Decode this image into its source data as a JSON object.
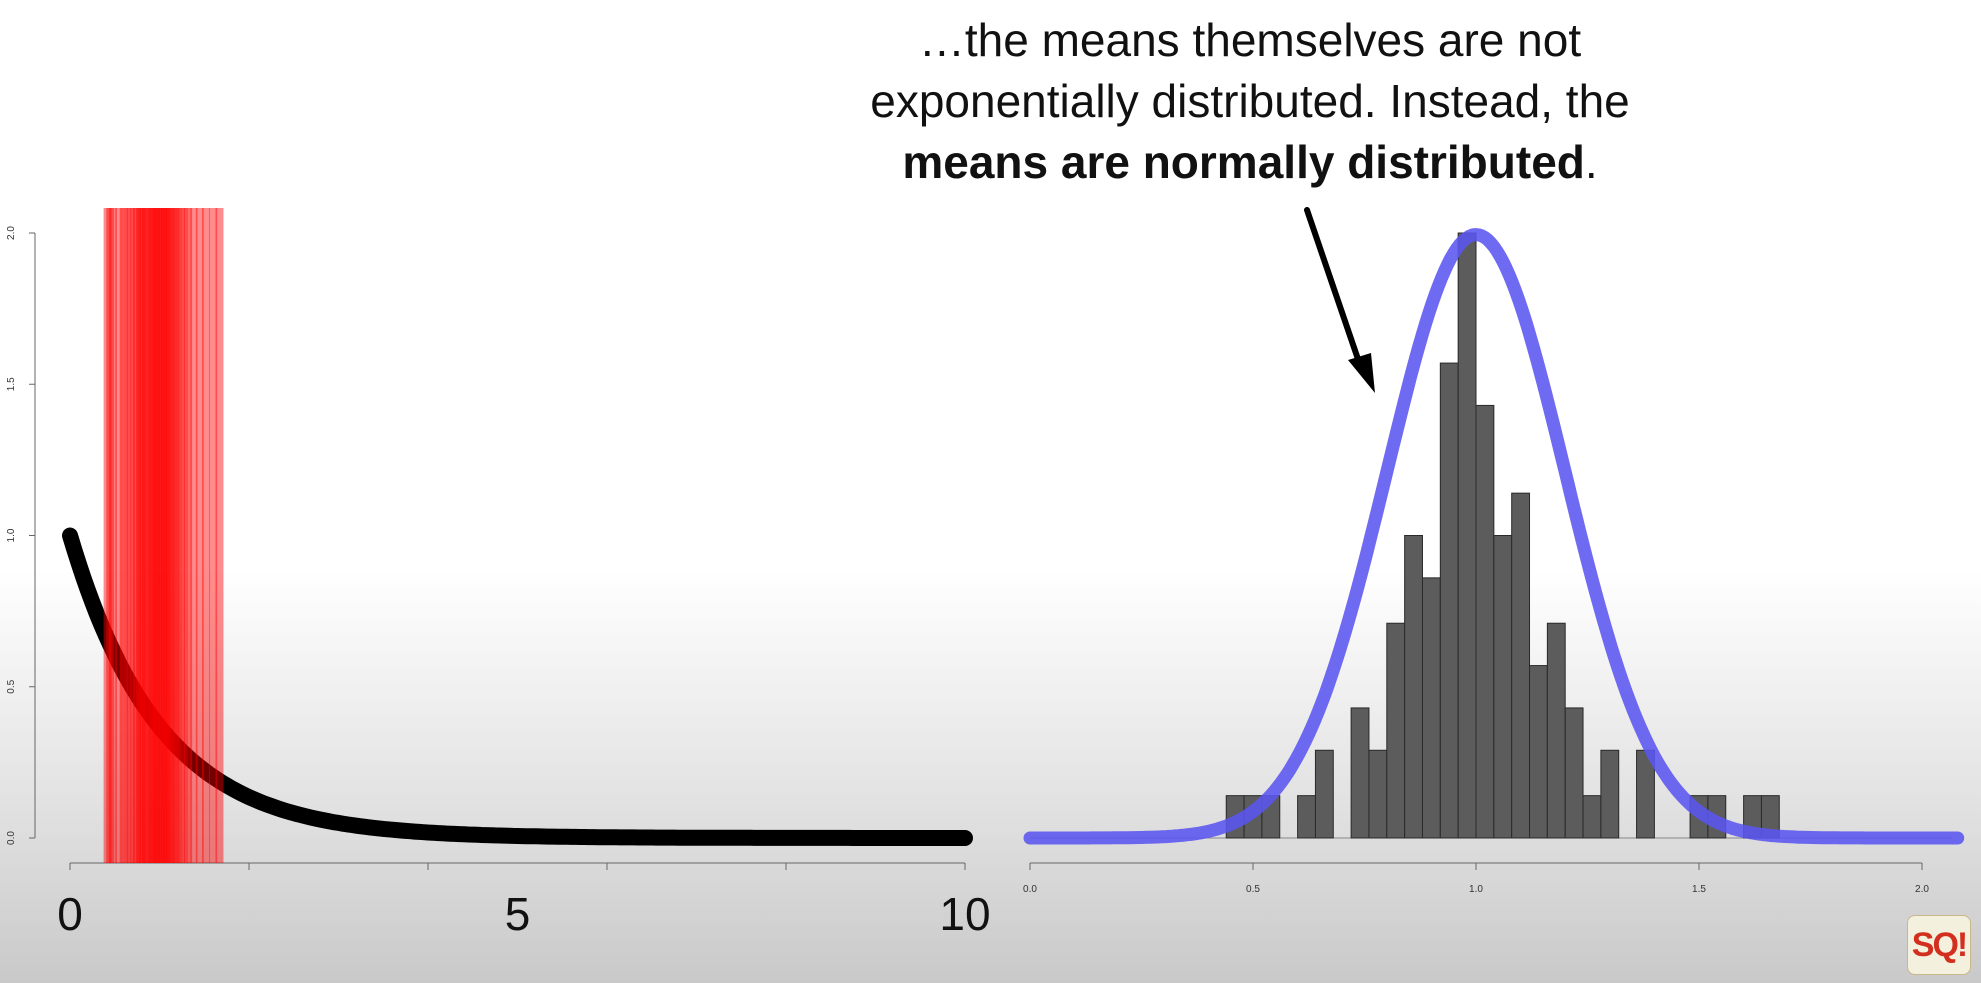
{
  "caption": {
    "line1": "…the means themselves are not",
    "line2": "exponentially distributed. Instead, the",
    "line3_bold": "means are normally distributed",
    "line3_end": "."
  },
  "logo": {
    "text": "SQ!"
  },
  "colors": {
    "curve": "#000000",
    "mean_bars": "#ff0000",
    "histogram_fill": "#5c5c5c",
    "normal_curve": "#5a55f0"
  },
  "chart_data": [
    {
      "type": "line",
      "xlim": [
        0,
        10
      ],
      "ylim": [
        0,
        2.0
      ],
      "x_ticks": [
        0,
        2,
        4,
        6,
        8,
        10
      ],
      "x_tick_labels": [
        {
          "value": 0,
          "label": "0"
        },
        {
          "value": 5,
          "label": "5"
        },
        {
          "value": 10,
          "label": "10"
        }
      ],
      "y_ticks": [
        {
          "value": 0.0,
          "label": "0.0"
        },
        {
          "value": 0.5,
          "label": "0.5"
        },
        {
          "value": 1.0,
          "label": "1.0"
        },
        {
          "value": 1.5,
          "label": "1.5"
        },
        {
          "value": 2.0,
          "label": "2.0"
        }
      ],
      "curve": {
        "function": "exponential",
        "rate": 1
      },
      "mean_lines": [
        0.42,
        0.45,
        0.48,
        0.55,
        0.6,
        0.64,
        0.68,
        0.72,
        0.75,
        0.78,
        0.8,
        0.82,
        0.85,
        0.87,
        0.9,
        0.92,
        0.94,
        0.96,
        0.98,
        1.0,
        1.02,
        1.04,
        1.06,
        1.08,
        1.1,
        1.12,
        1.15,
        1.18,
        1.2,
        1.24,
        1.28,
        1.32,
        1.38,
        1.45,
        1.52,
        1.6,
        1.67
      ]
    },
    {
      "type": "bar",
      "xlim": [
        0,
        2.0
      ],
      "ylim": [
        0,
        2.0
      ],
      "x_ticks": [
        {
          "value": 0.0,
          "label": "0.0"
        },
        {
          "value": 0.5,
          "label": "0.5"
        },
        {
          "value": 1.0,
          "label": "1.0"
        },
        {
          "value": 1.5,
          "label": "1.5"
        },
        {
          "value": 2.0,
          "label": "2.0"
        }
      ],
      "bin_width": 0.04,
      "bin_start": 0.44,
      "heights": [
        0.14,
        0.14,
        0.14,
        0,
        0.14,
        0.29,
        0,
        0.43,
        0.29,
        0.71,
        1.0,
        0.86,
        1.57,
        2.0,
        1.43,
        1.0,
        1.14,
        0.57,
        0.71,
        0.43,
        0.14,
        0.29,
        0,
        0.29,
        0,
        0,
        0.14,
        0.14,
        0,
        0.14,
        0.14
      ],
      "normal_curve": {
        "mean": 1.0,
        "sd": 0.2
      }
    }
  ]
}
